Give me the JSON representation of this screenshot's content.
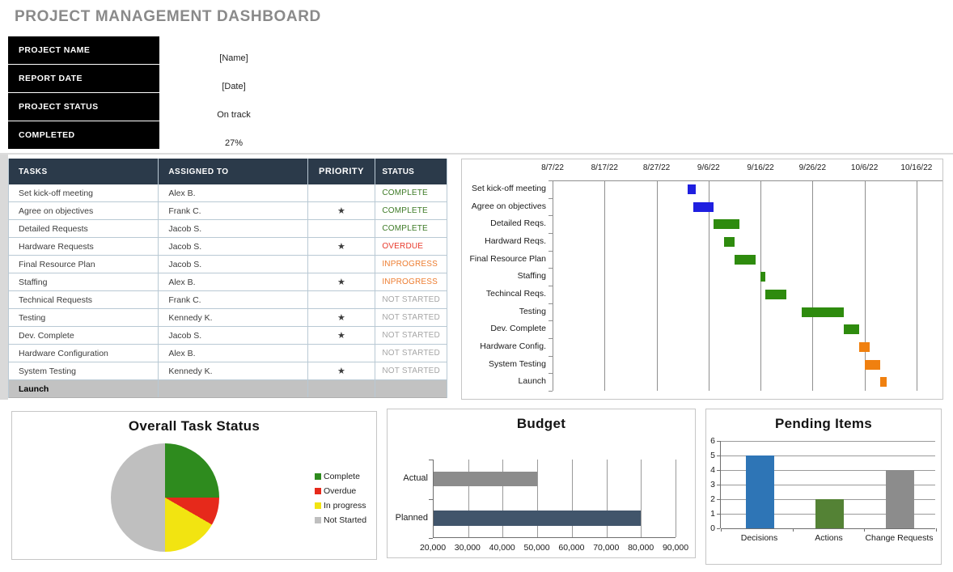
{
  "title": "PROJECT MANAGEMENT DASHBOARD",
  "info": {
    "rows": [
      {
        "label": "PROJECT NAME",
        "value": "[Name]"
      },
      {
        "label": "REPORT DATE",
        "value": "[Date]"
      },
      {
        "label": "PROJECT STATUS",
        "value": "On track"
      },
      {
        "label": "COMPLETED",
        "value": "27%"
      }
    ]
  },
  "task_table": {
    "columns": [
      "TASKS",
      "ASSIGNED TO",
      "PRIORITY",
      "STATUS"
    ],
    "rows": [
      {
        "task": "Set kick-off meeting",
        "assigned": "Alex B.",
        "priority": "",
        "status": "COMPLETE"
      },
      {
        "task": "Agree on objectives",
        "assigned": "Frank C.",
        "priority": "★",
        "status": "COMPLETE"
      },
      {
        "task": "Detailed Requests",
        "assigned": "Jacob S.",
        "priority": "",
        "status": "COMPLETE"
      },
      {
        "task": "Hardware Requests",
        "assigned": "Jacob S.",
        "priority": "★",
        "status": "OVERDUE"
      },
      {
        "task": "Final Resource Plan",
        "assigned": "Jacob S.",
        "priority": "",
        "status": "INPROGRESS"
      },
      {
        "task": "Staffing",
        "assigned": "Alex B.",
        "priority": "★",
        "status": "INPROGRESS"
      },
      {
        "task": "Technical Requests",
        "assigned": "Frank C.",
        "priority": "",
        "status": "NOT STARTED"
      },
      {
        "task": "Testing",
        "assigned": "Kennedy K.",
        "priority": "★",
        "status": "NOT STARTED"
      },
      {
        "task": "Dev. Complete",
        "assigned": "Jacob S.",
        "priority": "★",
        "status": "NOT STARTED"
      },
      {
        "task": "Hardware Configuration",
        "assigned": "Alex B.",
        "priority": "",
        "status": "NOT STARTED"
      },
      {
        "task": "System Testing",
        "assigned": "Kennedy K.",
        "priority": "★",
        "status": "NOT STARTED"
      }
    ],
    "footer_row": "Launch",
    "status_colors": {
      "COMPLETE": "#3d7a26",
      "OVERDUE": "#e8392b",
      "INPROGRESS": "#ed7d31",
      "NOT STARTED": "#a6a6a6"
    }
  },
  "chart_data": [
    {
      "name": "gantt_timeline",
      "type": "gantt",
      "axis_dates": [
        "8/7/22",
        "8/17/22",
        "8/27/22",
        "9/6/22",
        "9/16/22",
        "9/26/22",
        "10/6/22",
        "10/16/22"
      ],
      "tick_step_days": 10,
      "day_span": 75,
      "grid": true,
      "tasks": [
        {
          "label": "Set kick-off meeting",
          "start_day": 26,
          "duration_days": 1.5,
          "color": "#1f1fe0"
        },
        {
          "label": "Agree on objectives",
          "start_day": 27,
          "duration_days": 4,
          "color": "#1f1fe0"
        },
        {
          "label": "Detailed Reqs.",
          "start_day": 31,
          "duration_days": 5,
          "color": "#2e8b0e"
        },
        {
          "label": "Hardward Reqs.",
          "start_day": 33,
          "duration_days": 2,
          "color": "#2e8b0e"
        },
        {
          "label": "Final Resource Plan",
          "start_day": 35,
          "duration_days": 4,
          "color": "#2e8b0e"
        },
        {
          "label": "Staffing",
          "start_day": 40,
          "duration_days": 1,
          "color": "#2e8b0e"
        },
        {
          "label": "Techincal Reqs.",
          "start_day": 41,
          "duration_days": 4,
          "color": "#2e8b0e"
        },
        {
          "label": "Testing",
          "start_day": 48,
          "duration_days": 8,
          "color": "#2e8b0e"
        },
        {
          "label": "Dev. Complete",
          "start_day": 56,
          "duration_days": 3,
          "color": "#2e8b0e"
        },
        {
          "label": "Hardware Config.",
          "start_day": 59,
          "duration_days": 2,
          "color": "#f0800f"
        },
        {
          "label": "System Testing",
          "start_day": 60,
          "duration_days": 3,
          "color": "#f0800f"
        },
        {
          "label": "Launch",
          "start_day": 63,
          "duration_days": 1.2,
          "color": "#f0800f"
        }
      ]
    },
    {
      "name": "overall_task_status",
      "type": "pie",
      "title": "Overall Task Status",
      "legend_position": "right",
      "slices": [
        {
          "label": "Complete",
          "value": 3,
          "color": "#2e8b1e"
        },
        {
          "label": "Overdue",
          "value": 1,
          "color": "#e6291b"
        },
        {
          "label": "In progress",
          "value": 2,
          "color": "#f2e411"
        },
        {
          "label": "Not Started",
          "value": 6,
          "color": "#bfbfbf"
        }
      ]
    },
    {
      "name": "budget",
      "type": "bar-horizontal",
      "title": "Budget",
      "categories": [
        "Actual",
        "Planned"
      ],
      "values": [
        50000,
        80000
      ],
      "colors": [
        "#8c8c8c",
        "#41556b"
      ],
      "xmin": 20000,
      "xmax": 90000,
      "tick_labels": [
        "20,000",
        "30,000",
        "40,000",
        "50,000",
        "60,000",
        "70,000",
        "80,000",
        "90,000"
      ],
      "grid": true
    },
    {
      "name": "pending_items",
      "type": "bar",
      "title": "Pending Items",
      "categories": [
        "Decisions",
        "Actions",
        "Change Requests"
      ],
      "values": [
        5,
        2,
        4
      ],
      "colors": [
        "#2e75b6",
        "#548235",
        "#8c8c8c"
      ],
      "ylim": [
        0,
        6
      ],
      "ytick_labels": [
        "0",
        "1",
        "2",
        "3",
        "4",
        "5",
        "6"
      ],
      "grid": true
    }
  ]
}
